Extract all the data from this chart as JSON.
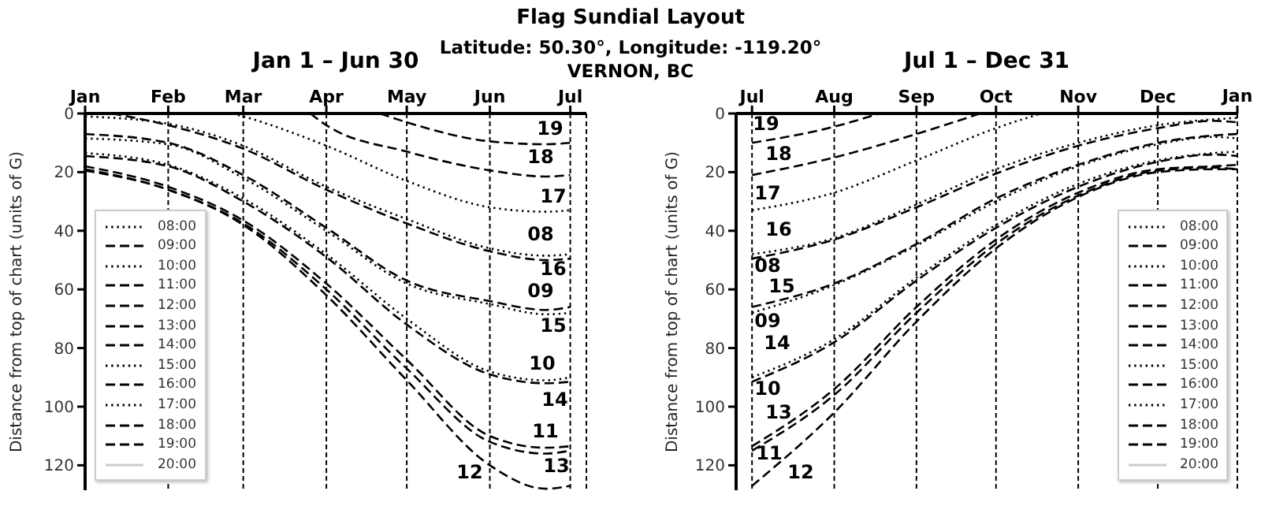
{
  "chart_data": [
    {
      "type": "line",
      "title": "Jan 1 – Jun 30",
      "ylabel": "Distance from top of chart (units of G)",
      "x": [
        "--01-01",
        "--02-01",
        "--03-01",
        "--04-01",
        "--05-01",
        "--06-01",
        "--06-22",
        "--07-01"
      ],
      "xlim": [
        "--01-01",
        "--07-07"
      ],
      "xticks": [
        {
          "value": "--01-01",
          "label": "Jan"
        },
        {
          "value": "--02-01",
          "label": "Feb"
        },
        {
          "value": "--03-01",
          "label": "Mar"
        },
        {
          "value": "--04-01",
          "label": "Apr"
        },
        {
          "value": "--05-01",
          "label": "May"
        },
        {
          "value": "--06-01",
          "label": "Jun"
        },
        {
          "value": "--07-01",
          "label": "Jul"
        }
      ],
      "ylim": [
        128.5,
        0
      ],
      "yticks": [
        0,
        20,
        40,
        60,
        80,
        100,
        120
      ],
      "grid": "x",
      "legend": "bottom left",
      "series": [
        {
          "name": "08:00",
          "color": "#000000",
          "line_style": "dotted",
          "values": [
            1,
            3.5,
            11,
            25,
            36,
            46,
            48.5,
            48
          ]
        },
        {
          "name": "09:00",
          "color": "#000000",
          "line_style": "dashed",
          "values": [
            7,
            10,
            21,
            39,
            57,
            64,
            67,
            66
          ]
        },
        {
          "name": "10:00",
          "color": "#000000",
          "line_style": "dotted",
          "values": [
            13.5,
            17.5,
            29,
            48,
            70,
            88,
            91,
            90
          ]
        },
        {
          "name": "11:00",
          "color": "#000000",
          "line_style": "dashed",
          "values": [
            18,
            25,
            36.5,
            58,
            84,
            110,
            114,
            113.5
          ]
        },
        {
          "name": "12:00",
          "color": "#000000",
          "line_style": "dashed",
          "values": [
            19.5,
            26,
            38,
            62,
            91,
            120,
            128,
            127
          ]
        },
        {
          "name": "13:00",
          "color": "#000000",
          "line_style": "dashed",
          "values": [
            19,
            26,
            37.5,
            60,
            87,
            112,
            116,
            115
          ]
        },
        {
          "name": "14:00",
          "color": "#000000",
          "line_style": "dashed",
          "values": [
            14.5,
            18,
            30,
            49,
            72,
            89,
            92,
            91.5
          ]
        },
        {
          "name": "15:00",
          "color": "#000000",
          "line_style": "dotted",
          "values": [
            8.5,
            10.5,
            22,
            40,
            58,
            65,
            68.5,
            68
          ]
        },
        {
          "name": "16:00",
          "color": "#000000",
          "line_style": "dashed",
          "x": [
            "--01-11",
            "--02-01",
            "--03-01",
            "--04-01",
            "--05-01",
            "--06-01",
            "--06-22",
            "--07-01"
          ],
          "values": [
            0,
            4,
            12,
            26,
            37.5,
            47,
            50,
            49.5
          ]
        },
        {
          "name": "17:00",
          "color": "#000000",
          "line_style": "dotted",
          "x": [
            "--02-25",
            "--03-01",
            "--04-01",
            "--05-01",
            "--06-01",
            "--06-22",
            "--07-01"
          ],
          "values": [
            0,
            1,
            11,
            23,
            32,
            33.5,
            33
          ]
        },
        {
          "name": "18:00",
          "color": "#000000",
          "line_style": "dashed",
          "x": [
            "--03-26",
            "--04-01",
            "--05-01",
            "--06-01",
            "--06-22",
            "--07-01"
          ],
          "values": [
            0,
            4,
            13,
            19.4,
            21.5,
            21
          ]
        },
        {
          "name": "19:00",
          "color": "#000000",
          "line_style": "dashed",
          "x": [
            "--04-21",
            "--05-01",
            "--06-01",
            "--06-22",
            "--07-01"
          ],
          "values": [
            0,
            3,
            9.5,
            10.5,
            10
          ]
        },
        {
          "name": "20:00",
          "color": "#cccccc",
          "line_style": "solid",
          "values": [
            null,
            null,
            null,
            null,
            null,
            null,
            null,
            null
          ]
        }
      ],
      "annotations": [
        "Flag Sundial Layout",
        "Latitude: 50.30°, Longitude: -119.20°",
        "VERNON, BC",
        "19",
        "18",
        "17",
        "08",
        "16",
        "09",
        "15",
        "10",
        "14",
        "11",
        "13",
        "12"
      ]
    },
    {
      "type": "line",
      "title": "Jul 1 – Dec 31",
      "ylabel": "Distance from top of chart (units of G)",
      "x": [
        "--07-01",
        "--08-01",
        "--09-01",
        "--10-01",
        "--11-01",
        "--12-01",
        "--12-22",
        "--12-31"
      ],
      "xlim": [
        "--06-25",
        "--12-31"
      ],
      "xticks": [
        {
          "value": "--07-01",
          "label": "Jul"
        },
        {
          "value": "--08-01",
          "label": "Aug"
        },
        {
          "value": "--09-01",
          "label": "Sep"
        },
        {
          "value": "--10-01",
          "label": "Oct"
        },
        {
          "value": "--11-01",
          "label": "Nov"
        },
        {
          "value": "--12-01",
          "label": "Dec"
        },
        {
          "value": "--12-31",
          "label": null
        }
      ],
      "ylim": [
        128.5,
        0
      ],
      "yticks": [
        0,
        20,
        40,
        60,
        80,
        100,
        120
      ],
      "grid": "x",
      "legend": "bottom right",
      "series": [
        {
          "name": "08:00",
          "color": "#000000",
          "line_style": "dotted",
          "values": [
            48,
            42.5,
            31,
            19,
            10,
            4,
            2,
            1.5
          ]
        },
        {
          "name": "09:00",
          "color": "#000000",
          "line_style": "dashed",
          "values": [
            66,
            58,
            44.5,
            29,
            17.5,
            10,
            7.5,
            7
          ]
        },
        {
          "name": "10:00",
          "color": "#000000",
          "line_style": "dotted",
          "values": [
            90,
            77,
            56,
            38,
            24,
            16,
            13.5,
            13
          ]
        },
        {
          "name": "11:00",
          "color": "#000000",
          "line_style": "dashed",
          "values": [
            113.5,
            94,
            66,
            43,
            27,
            19,
            18,
            17.5
          ]
        },
        {
          "name": "12:00",
          "color": "#000000",
          "line_style": "dashed",
          "values": [
            127,
            102,
            71,
            46,
            28.5,
            20,
            19,
            19
          ]
        },
        {
          "name": "13:00",
          "color": "#000000",
          "line_style": "dashed",
          "values": [
            115,
            96,
            68,
            44.5,
            28,
            19.5,
            18.5,
            19
          ]
        },
        {
          "name": "14:00",
          "color": "#000000",
          "line_style": "dashed",
          "values": [
            91.5,
            78,
            57,
            39,
            25,
            16.5,
            14,
            14.5
          ]
        },
        {
          "name": "15:00",
          "color": "#000000",
          "line_style": "dotted",
          "values": [
            68,
            58.5,
            45,
            30,
            18,
            10.5,
            8,
            8.5
          ]
        },
        {
          "name": "16:00",
          "color": "#000000",
          "line_style": "dashed",
          "values": [
            49.5,
            43,
            32,
            20.5,
            11,
            5,
            2.5,
            3
          ]
        },
        {
          "name": "17:00",
          "color": "#000000",
          "line_style": "dotted",
          "x": [
            "--07-01",
            "--08-01",
            "--09-01",
            "--10-01",
            "--10-18"
          ],
          "values": [
            33,
            27,
            16,
            5,
            0
          ]
        },
        {
          "name": "18:00",
          "color": "#000000",
          "line_style": "dashed",
          "x": [
            "--07-01",
            "--08-01",
            "--09-01",
            "--09-25"
          ],
          "values": [
            21,
            15,
            7,
            0
          ]
        },
        {
          "name": "19:00",
          "color": "#000000",
          "line_style": "dashed",
          "x": [
            "--07-01",
            "--08-01",
            "--08-18"
          ],
          "values": [
            10,
            4.5,
            0
          ]
        },
        {
          "name": "20:00",
          "color": "#cccccc",
          "line_style": "solid",
          "values": [
            null,
            null,
            null,
            null,
            null,
            null,
            null,
            null
          ]
        }
      ],
      "annotations": [
        "19",
        "18",
        "17",
        "16",
        "08",
        "15",
        "09",
        "14",
        "10",
        "13",
        "11",
        "12",
        "Jan"
      ]
    }
  ]
}
